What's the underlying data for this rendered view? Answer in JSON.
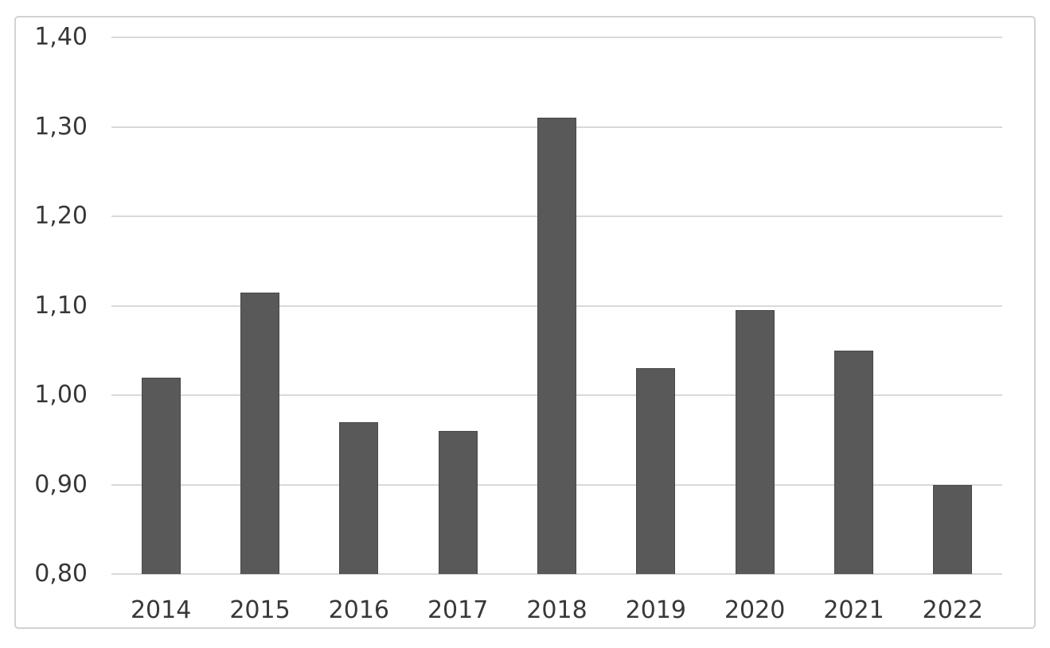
{
  "chart_data": {
    "type": "bar",
    "title": "",
    "xlabel": "",
    "ylabel": "",
    "categories": [
      "2014",
      "2015",
      "2016",
      "2017",
      "2018",
      "2019",
      "2020",
      "2021",
      "2022"
    ],
    "values": [
      1.02,
      1.115,
      0.97,
      0.96,
      1.31,
      1.03,
      1.095,
      1.05,
      0.9
    ],
    "ylim": [
      0.8,
      1.4
    ],
    "ytick_step": 0.1,
    "ytick_labels": [
      "1,40",
      "1,30",
      "1,20",
      "1,10",
      "1,00",
      "0,90",
      "0,80"
    ],
    "decimal_separator": ",",
    "grid": true,
    "legend": "none",
    "colors": {
      "bar_fill": "#595959",
      "gridline": "#d9d9d9",
      "axis_text": "#383838",
      "frame_border": "#d2d2d2",
      "background": "#ffffff"
    }
  }
}
